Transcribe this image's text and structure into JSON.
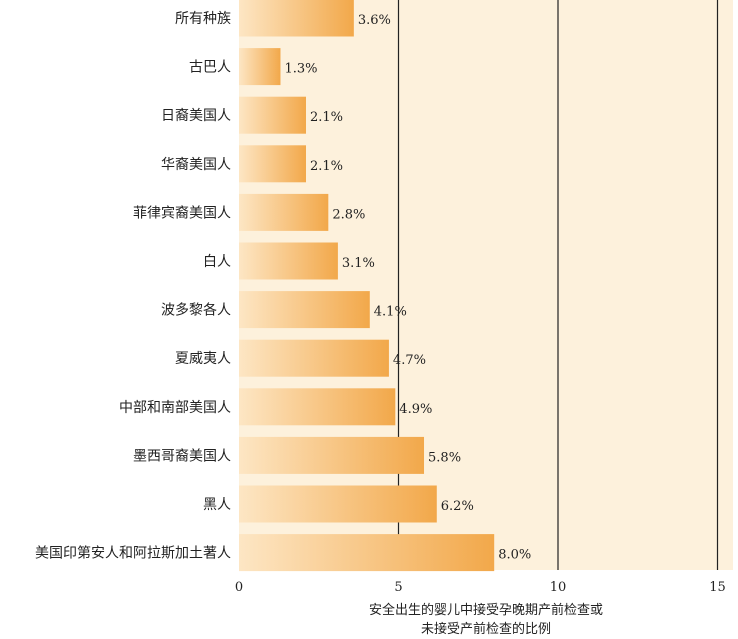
{
  "chart_data": {
    "type": "bar",
    "orientation": "horizontal",
    "categories": [
      "所有种族",
      "古巴人",
      "日裔美国人",
      "华裔美国人",
      "菲律宾裔美国人",
      "白人",
      "波多黎各人",
      "夏威夷人",
      "中部和南部美国人",
      "墨西哥裔美国人",
      "黑人",
      "美国印第安人和阿拉斯加土著人"
    ],
    "values": [
      3.6,
      1.3,
      2.1,
      2.1,
      2.8,
      3.1,
      4.1,
      4.7,
      4.9,
      5.8,
      6.2,
      8.0
    ],
    "value_labels": [
      "3.6%",
      "1.3%",
      "2.1%",
      "2.1%",
      "2.8%",
      "3.1%",
      "4.1%",
      "4.7%",
      "4.9%",
      "5.8%",
      "6.2%",
      "8.0%"
    ],
    "xlabel_lines": [
      "安全出生的婴儿中接受孕晚期产前检查或",
      "未接受产前检查的比例"
    ],
    "xlim": [
      0,
      15
    ],
    "xticks": [
      "0",
      "5",
      "10",
      "15"
    ],
    "grid": true,
    "colors": {
      "plot_background": "#fdf1dc",
      "bar_light": "#fde6c4",
      "bar_dark": "#f2a84a",
      "grid_line": "#222222"
    }
  }
}
